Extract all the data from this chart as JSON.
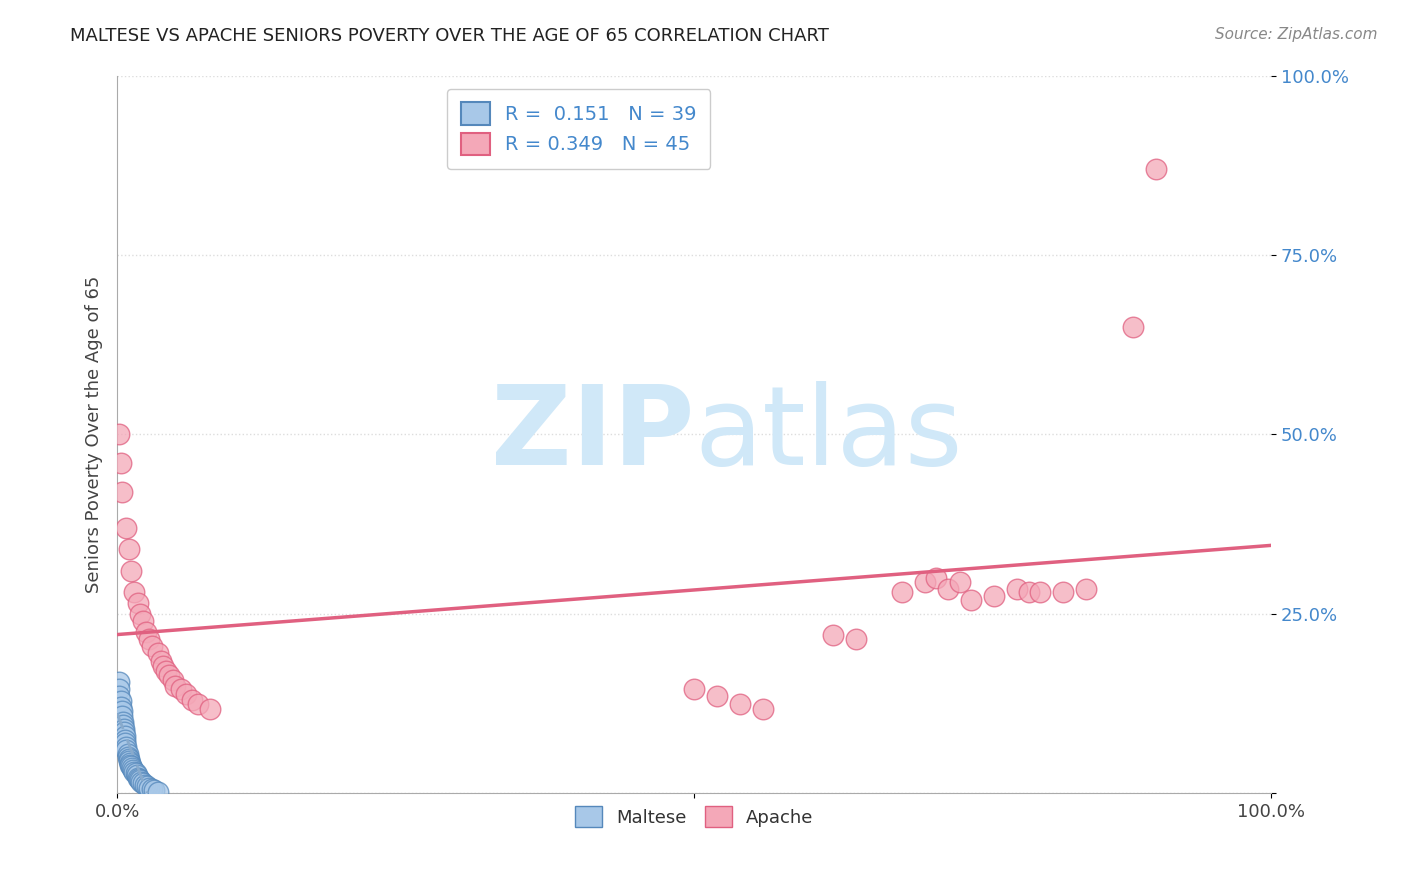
{
  "title": "MALTESE VS APACHE SENIORS POVERTY OVER THE AGE OF 65 CORRELATION CHART",
  "source_text": "Source: ZipAtlas.com",
  "ylabel": "Seniors Poverty Over the Age of 65",
  "xlim": [
    0,
    1.0
  ],
  "ylim": [
    0,
    1.0
  ],
  "xticks": [
    0.0,
    0.5,
    1.0
  ],
  "xticklabels": [
    "0.0%",
    "",
    "100.0%"
  ],
  "ytick_positions": [
    0.0,
    0.25,
    0.5,
    0.75,
    1.0
  ],
  "yticklabels_right": [
    "",
    "25.0%",
    "50.0%",
    "75.0%",
    "100.0%"
  ],
  "legend_line1": "R =  0.151   N = 39",
  "legend_line2": "R = 0.349   N = 45",
  "maltese_color": "#a8c8e8",
  "apache_color": "#f4a8b8",
  "maltese_edge_color": "#5588bb",
  "apache_edge_color": "#e06080",
  "trendline_maltese_color": "#88aacc",
  "trendline_apache_color": "#e06080",
  "watermark_color": "#d0e8f8",
  "grid_color": "#dddddd",
  "background_color": "#ffffff",
  "legend_text_color": "#4488cc",
  "maltese_scatter_x": [
    0.002,
    0.002,
    0.002,
    0.003,
    0.003,
    0.004,
    0.004,
    0.005,
    0.005,
    0.006,
    0.006,
    0.007,
    0.007,
    0.007,
    0.008,
    0.008,
    0.009,
    0.009,
    0.01,
    0.01,
    0.011,
    0.011,
    0.012,
    0.013,
    0.014,
    0.015,
    0.016,
    0.017,
    0.018,
    0.019,
    0.02,
    0.021,
    0.022,
    0.024,
    0.026,
    0.028,
    0.03,
    0.032,
    0.035
  ],
  "maltese_scatter_y": [
    0.155,
    0.145,
    0.135,
    0.128,
    0.12,
    0.115,
    0.108,
    0.1,
    0.095,
    0.09,
    0.085,
    0.08,
    0.075,
    0.07,
    0.065,
    0.06,
    0.055,
    0.05,
    0.048,
    0.045,
    0.042,
    0.04,
    0.038,
    0.035,
    0.032,
    0.03,
    0.028,
    0.025,
    0.022,
    0.02,
    0.018,
    0.016,
    0.014,
    0.012,
    0.01,
    0.008,
    0.006,
    0.004,
    0.002
  ],
  "apache_scatter_x": [
    0.002,
    0.003,
    0.004,
    0.008,
    0.01,
    0.012,
    0.015,
    0.018,
    0.02,
    0.022,
    0.025,
    0.028,
    0.03,
    0.035,
    0.038,
    0.04,
    0.042,
    0.045,
    0.048,
    0.05,
    0.055,
    0.06,
    0.065,
    0.07,
    0.08,
    0.5,
    0.52,
    0.54,
    0.56,
    0.62,
    0.64,
    0.68,
    0.7,
    0.71,
    0.72,
    0.73,
    0.74,
    0.76,
    0.78,
    0.79,
    0.8,
    0.82,
    0.84,
    0.88,
    0.9
  ],
  "apache_scatter_y": [
    0.5,
    0.46,
    0.42,
    0.37,
    0.34,
    0.31,
    0.28,
    0.265,
    0.25,
    0.24,
    0.225,
    0.215,
    0.205,
    0.195,
    0.185,
    0.178,
    0.17,
    0.165,
    0.158,
    0.15,
    0.145,
    0.138,
    0.13,
    0.125,
    0.118,
    0.145,
    0.135,
    0.125,
    0.118,
    0.22,
    0.215,
    0.28,
    0.295,
    0.3,
    0.285,
    0.295,
    0.27,
    0.275,
    0.285,
    0.28,
    0.28,
    0.28,
    0.285,
    0.65,
    0.87
  ]
}
